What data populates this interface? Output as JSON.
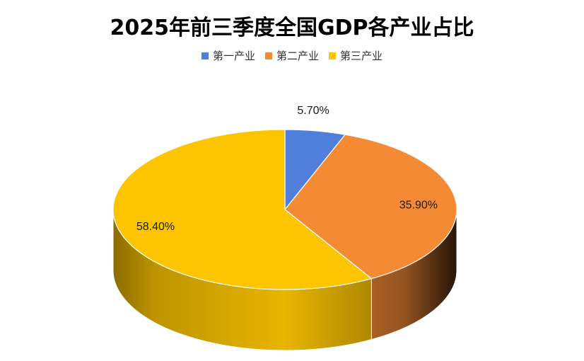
{
  "chart_data": {
    "type": "pie",
    "style": "3d",
    "title": "2025年前三季度全国GDP各产业占比",
    "legend_position": "top",
    "categories": [
      "第一产业",
      "第二产业",
      "第三产业"
    ],
    "values": [
      5.7,
      35.9,
      58.4
    ],
    "value_labels": [
      "5.70%",
      "35.90%",
      "58.40%"
    ],
    "colors": [
      "#4F7FDB",
      "#F58A35",
      "#FCC500"
    ]
  }
}
